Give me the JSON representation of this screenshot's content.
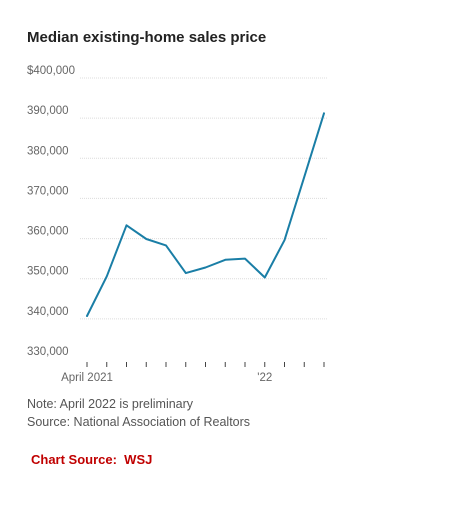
{
  "chart_data": {
    "type": "line",
    "title": "Median existing-home sales price",
    "xlabel": "",
    "ylabel": "",
    "x": [
      "2021-04",
      "2021-05",
      "2021-06",
      "2021-07",
      "2021-08",
      "2021-09",
      "2021-10",
      "2021-11",
      "2021-12",
      "2022-01",
      "2022-02",
      "2022-03",
      "2022-04"
    ],
    "x_tick_labels": [
      {
        "x": "2021-04",
        "label": "April 2021"
      },
      {
        "x": "2022-01",
        "label": "'22"
      }
    ],
    "series": [
      {
        "values": [
          340700,
          350600,
          363300,
          359900,
          358300,
          351400,
          352800,
          354700,
          355000,
          350300,
          359600,
          375400,
          391200
        ]
      }
    ],
    "ylim": [
      330000,
      400000
    ],
    "y_ticks": [
      {
        "value": 400000,
        "label": "$400,000"
      },
      {
        "value": 390000,
        "label": "390,000"
      },
      {
        "value": 380000,
        "label": "380,000"
      },
      {
        "value": 370000,
        "label": "370,000"
      },
      {
        "value": 360000,
        "label": "360,000"
      },
      {
        "value": 350000,
        "label": "350,000"
      },
      {
        "value": 340000,
        "label": "340,000"
      },
      {
        "value": 330000,
        "label": "330,000"
      }
    ],
    "grid": true,
    "line_color": "#1a7ea6",
    "grid_color": "#dcdcdc"
  },
  "notes": {
    "note": "Note: April 2022 is preliminary",
    "source": "Source: National Association of Realtors"
  },
  "credit": {
    "text": "Chart Source:  WSJ",
    "color": "#c00000"
  }
}
